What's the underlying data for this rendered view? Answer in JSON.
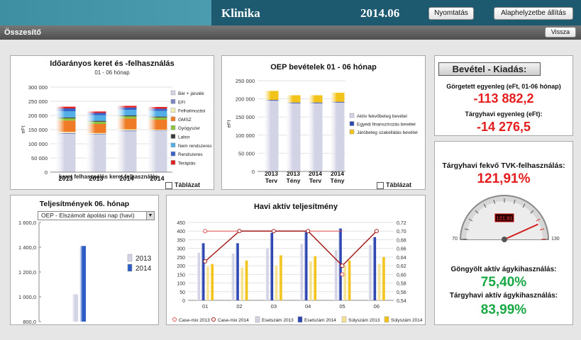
{
  "app": {
    "title": "Klinika",
    "date": "2014.06",
    "print_label": "Nyomtatás",
    "reset_label": "Alaphelyzetbe állítás"
  },
  "sub": {
    "title": "Összesítő",
    "back_label": "Vissza"
  },
  "table_label": "Táblázat",
  "chart1": {
    "title": "Időarányos keret és -felhasználás",
    "subtitle": "01 - 06 hónap",
    "ylabel": "eFt",
    "xcat_top": [
      "2013",
      "2013",
      "2014",
      "2014"
    ],
    "xcat_bottom": "keret felhasználás keret felhasználás"
  },
  "chart2": {
    "title": "OEP bevételek 01 - 06 hónap",
    "ylabel": "eFt",
    "xcat_top": [
      "2013",
      "2013",
      "2014",
      "2014"
    ],
    "xcat_bottom": [
      "Terv",
      "Tény",
      "Terv",
      "Tény"
    ]
  },
  "chart3": {
    "title": "Teljesítmények 06. hónap",
    "dropdown": "OEP - Elszámolt ápolási nap (havi)"
  },
  "chart4": {
    "title": "Havi aktív teljesítmény"
  },
  "summary": {
    "title": "Bevétel -  Kiadás:",
    "cum_label": "Görgetett egyenleg (eFt, 01-06 hónap)",
    "cum_value": "-113 882,2",
    "month_label": "Tárgyhavi egyenleg (eFt):",
    "month_value": "-14 276,5"
  },
  "gauge": {
    "title": "Tárgyhavi fekvő TVK-felhasználás:",
    "value": "121,91%",
    "readout": "121,91",
    "min": "70",
    "max": "130",
    "level": 121.91,
    "cum_label": "Göngyölt aktív ágykihasználás:",
    "cum_value": "75,40%",
    "month_label": "Tárgyhavi aktív ágykihasználás:",
    "month_value": "83,99%"
  },
  "colors": {
    "positive": "#1aa845",
    "negative": "#e41e1e"
  },
  "chart_data": [
    {
      "type": "bar",
      "title": "Időarányos keret és -felhasználás",
      "subtitle": "01 - 06 hónap",
      "ylabel": "eFt",
      "ylim": [
        0,
        300000
      ],
      "yticks": [
        "0",
        "50 000",
        "100 000",
        "150 000",
        "200 000",
        "250 000",
        "300 000"
      ],
      "categories": [
        "2013",
        "2013",
        "2014",
        "2014"
      ],
      "series": [
        {
          "name": "Bér + járulék",
          "color": "#d3d3e6",
          "values": [
            135000,
            133000,
            144000,
            145000
          ]
        },
        {
          "name": "EFI",
          "color": "#7b85c8",
          "values": [
            3000,
            2000,
            3000,
            2000
          ]
        },
        {
          "name": "Felhalmozási",
          "color": "#f1eeb4",
          "values": [
            4000,
            3000,
            4000,
            3000
          ]
        },
        {
          "name": "GMSZ",
          "color": "#ef7b26",
          "values": [
            40000,
            32000,
            38000,
            35000
          ]
        },
        {
          "name": "Gyógyszer",
          "color": "#8dc23e",
          "values": [
            8000,
            8000,
            8000,
            8000
          ]
        },
        {
          "name": "Labor",
          "color": "#3a3a3a",
          "values": [
            3000,
            3000,
            3000,
            3000
          ]
        },
        {
          "name": "Nem rendszeres",
          "color": "#53aee6",
          "values": [
            22000,
            20000,
            20000,
            20000
          ]
        },
        {
          "name": "Rendszeres",
          "color": "#3a61c6",
          "values": [
            10000,
            8000,
            8000,
            8000
          ]
        },
        {
          "name": "Terápiás",
          "color": "#e21e1e",
          "values": [
            6000,
            5000,
            6000,
            6000
          ]
        }
      ]
    },
    {
      "type": "bar",
      "title": "OEP bevételek 01 - 06 hónap",
      "ylabel": "eFt",
      "ylim": [
        0,
        250000
      ],
      "yticks": [
        "0",
        "50 000",
        "100 000",
        "150 000",
        "200 000",
        "250 000"
      ],
      "categories": [
        "2013 Terv",
        "2013 Tény",
        "2014 Terv",
        "2014 Tény"
      ],
      "series": [
        {
          "name": "Aktív fekvőbeteg bevétel",
          "color": "#d3d3e6",
          "values": [
            195000,
            188000,
            188000,
            190000
          ]
        },
        {
          "name": "Egyedi finanszírozás bevétel",
          "color": "#2d45b0",
          "values": [
            2000,
            2000,
            2000,
            2000
          ]
        },
        {
          "name": "Járóbeteg szakellátás bevétel",
          "color": "#f2c318",
          "values": [
            25000,
            20000,
            20000,
            25000
          ]
        }
      ]
    },
    {
      "type": "bar",
      "title": "Teljesítmények 06. hónap",
      "ylim": [
        800,
        1600
      ],
      "yticks": [
        "800,0",
        "1 000,0",
        "1 200,0",
        "1 400,0",
        "1 600,0"
      ],
      "categories": [
        ""
      ],
      "series": [
        {
          "name": "2013",
          "color": "#d3d3e6",
          "values": [
            1020
          ]
        },
        {
          "name": "2014",
          "color": "#2d5cc4",
          "values": [
            1410
          ]
        }
      ]
    },
    {
      "type": "bar",
      "title": "Havi aktív teljesítmény",
      "categories": [
        "01",
        "02",
        "03",
        "04",
        "05",
        "06"
      ],
      "ylim": [
        0,
        450
      ],
      "yticks": [
        "0",
        "50",
        "100",
        "150",
        "200",
        "250",
        "300",
        "350",
        "400",
        "450"
      ],
      "y2lim": [
        0.54,
        0.72
      ],
      "y2ticks": [
        "0,54",
        "0,56",
        "0,58",
        "0,60",
        "0,62",
        "0,64",
        "0,66",
        "0,68",
        "0,70",
        "0,72"
      ],
      "series": [
        {
          "name": "Case-mix 2013",
          "color": "#e05050",
          "axis": "right",
          "kind": "line",
          "values": [
            0.7,
            null,
            null,
            null,
            0.6,
            null
          ]
        },
        {
          "name": "Case-mix 2014",
          "color": "#a21a1a",
          "axis": "right",
          "kind": "line",
          "values": [
            0.63,
            0.7,
            0.7,
            0.7,
            0.62,
            0.7
          ]
        },
        {
          "name": "Esetszám 2013",
          "color": "#d3d3e6",
          "kind": "bar",
          "values": [
            275,
            270,
            300,
            325,
            290,
            320
          ]
        },
        {
          "name": "Esetszám 2014",
          "color": "#2d45b0",
          "kind": "bar",
          "values": [
            330,
            330,
            390,
            395,
            415,
            365
          ]
        },
        {
          "name": "Súlyszám 2013",
          "color": "#f6e392",
          "kind": "bar",
          "values": [
            195,
            190,
            200,
            225,
            200,
            210
          ]
        },
        {
          "name": "Súlyszám 2014",
          "color": "#f2c318",
          "kind": "bar",
          "values": [
            210,
            230,
            260,
            255,
            230,
            250
          ]
        }
      ]
    }
  ]
}
